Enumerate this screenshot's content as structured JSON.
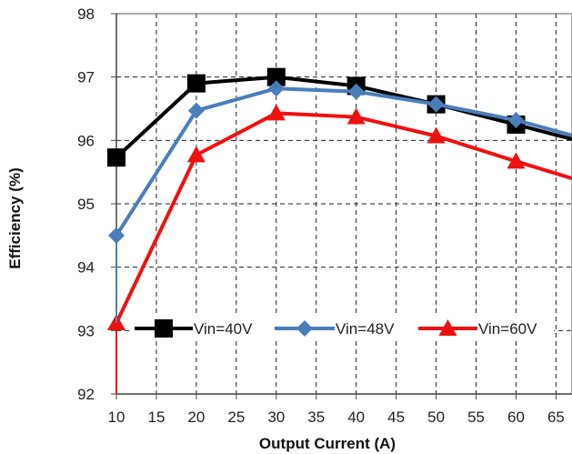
{
  "chart_data": {
    "type": "line",
    "title": "",
    "xlabel": "Output Current (A)",
    "ylabel": "Efficiency (%)",
    "xlim": [
      10,
      67
    ],
    "ylim": [
      92,
      98
    ],
    "xticks": [
      10,
      15,
      20,
      25,
      30,
      35,
      40,
      45,
      50,
      55,
      60,
      65
    ],
    "yticks": [
      92,
      93,
      94,
      95,
      96,
      97,
      98
    ],
    "grid": true,
    "legend_position": "bottom-center",
    "series": [
      {
        "name": "Vin=40V",
        "color": "#000000",
        "marker": "square",
        "x": [
          10,
          20,
          30,
          40,
          50,
          60,
          67
        ],
        "y": [
          95.73,
          96.9,
          97.0,
          96.86,
          96.57,
          96.25,
          96.02
        ]
      },
      {
        "name": "Vin=48V",
        "color": "#4a7ebb",
        "marker": "diamond",
        "x": [
          10,
          20,
          30,
          40,
          50,
          60,
          67
        ],
        "y": [
          94.5,
          96.47,
          96.82,
          96.77,
          96.57,
          96.32,
          96.08
        ]
      },
      {
        "name": "Vin=60V",
        "color": "#ee1111",
        "marker": "triangle",
        "x": [
          10,
          20,
          30,
          40,
          50,
          60,
          67
        ],
        "y": [
          93.12,
          95.77,
          96.43,
          96.37,
          96.07,
          95.67,
          95.4
        ]
      }
    ]
  }
}
